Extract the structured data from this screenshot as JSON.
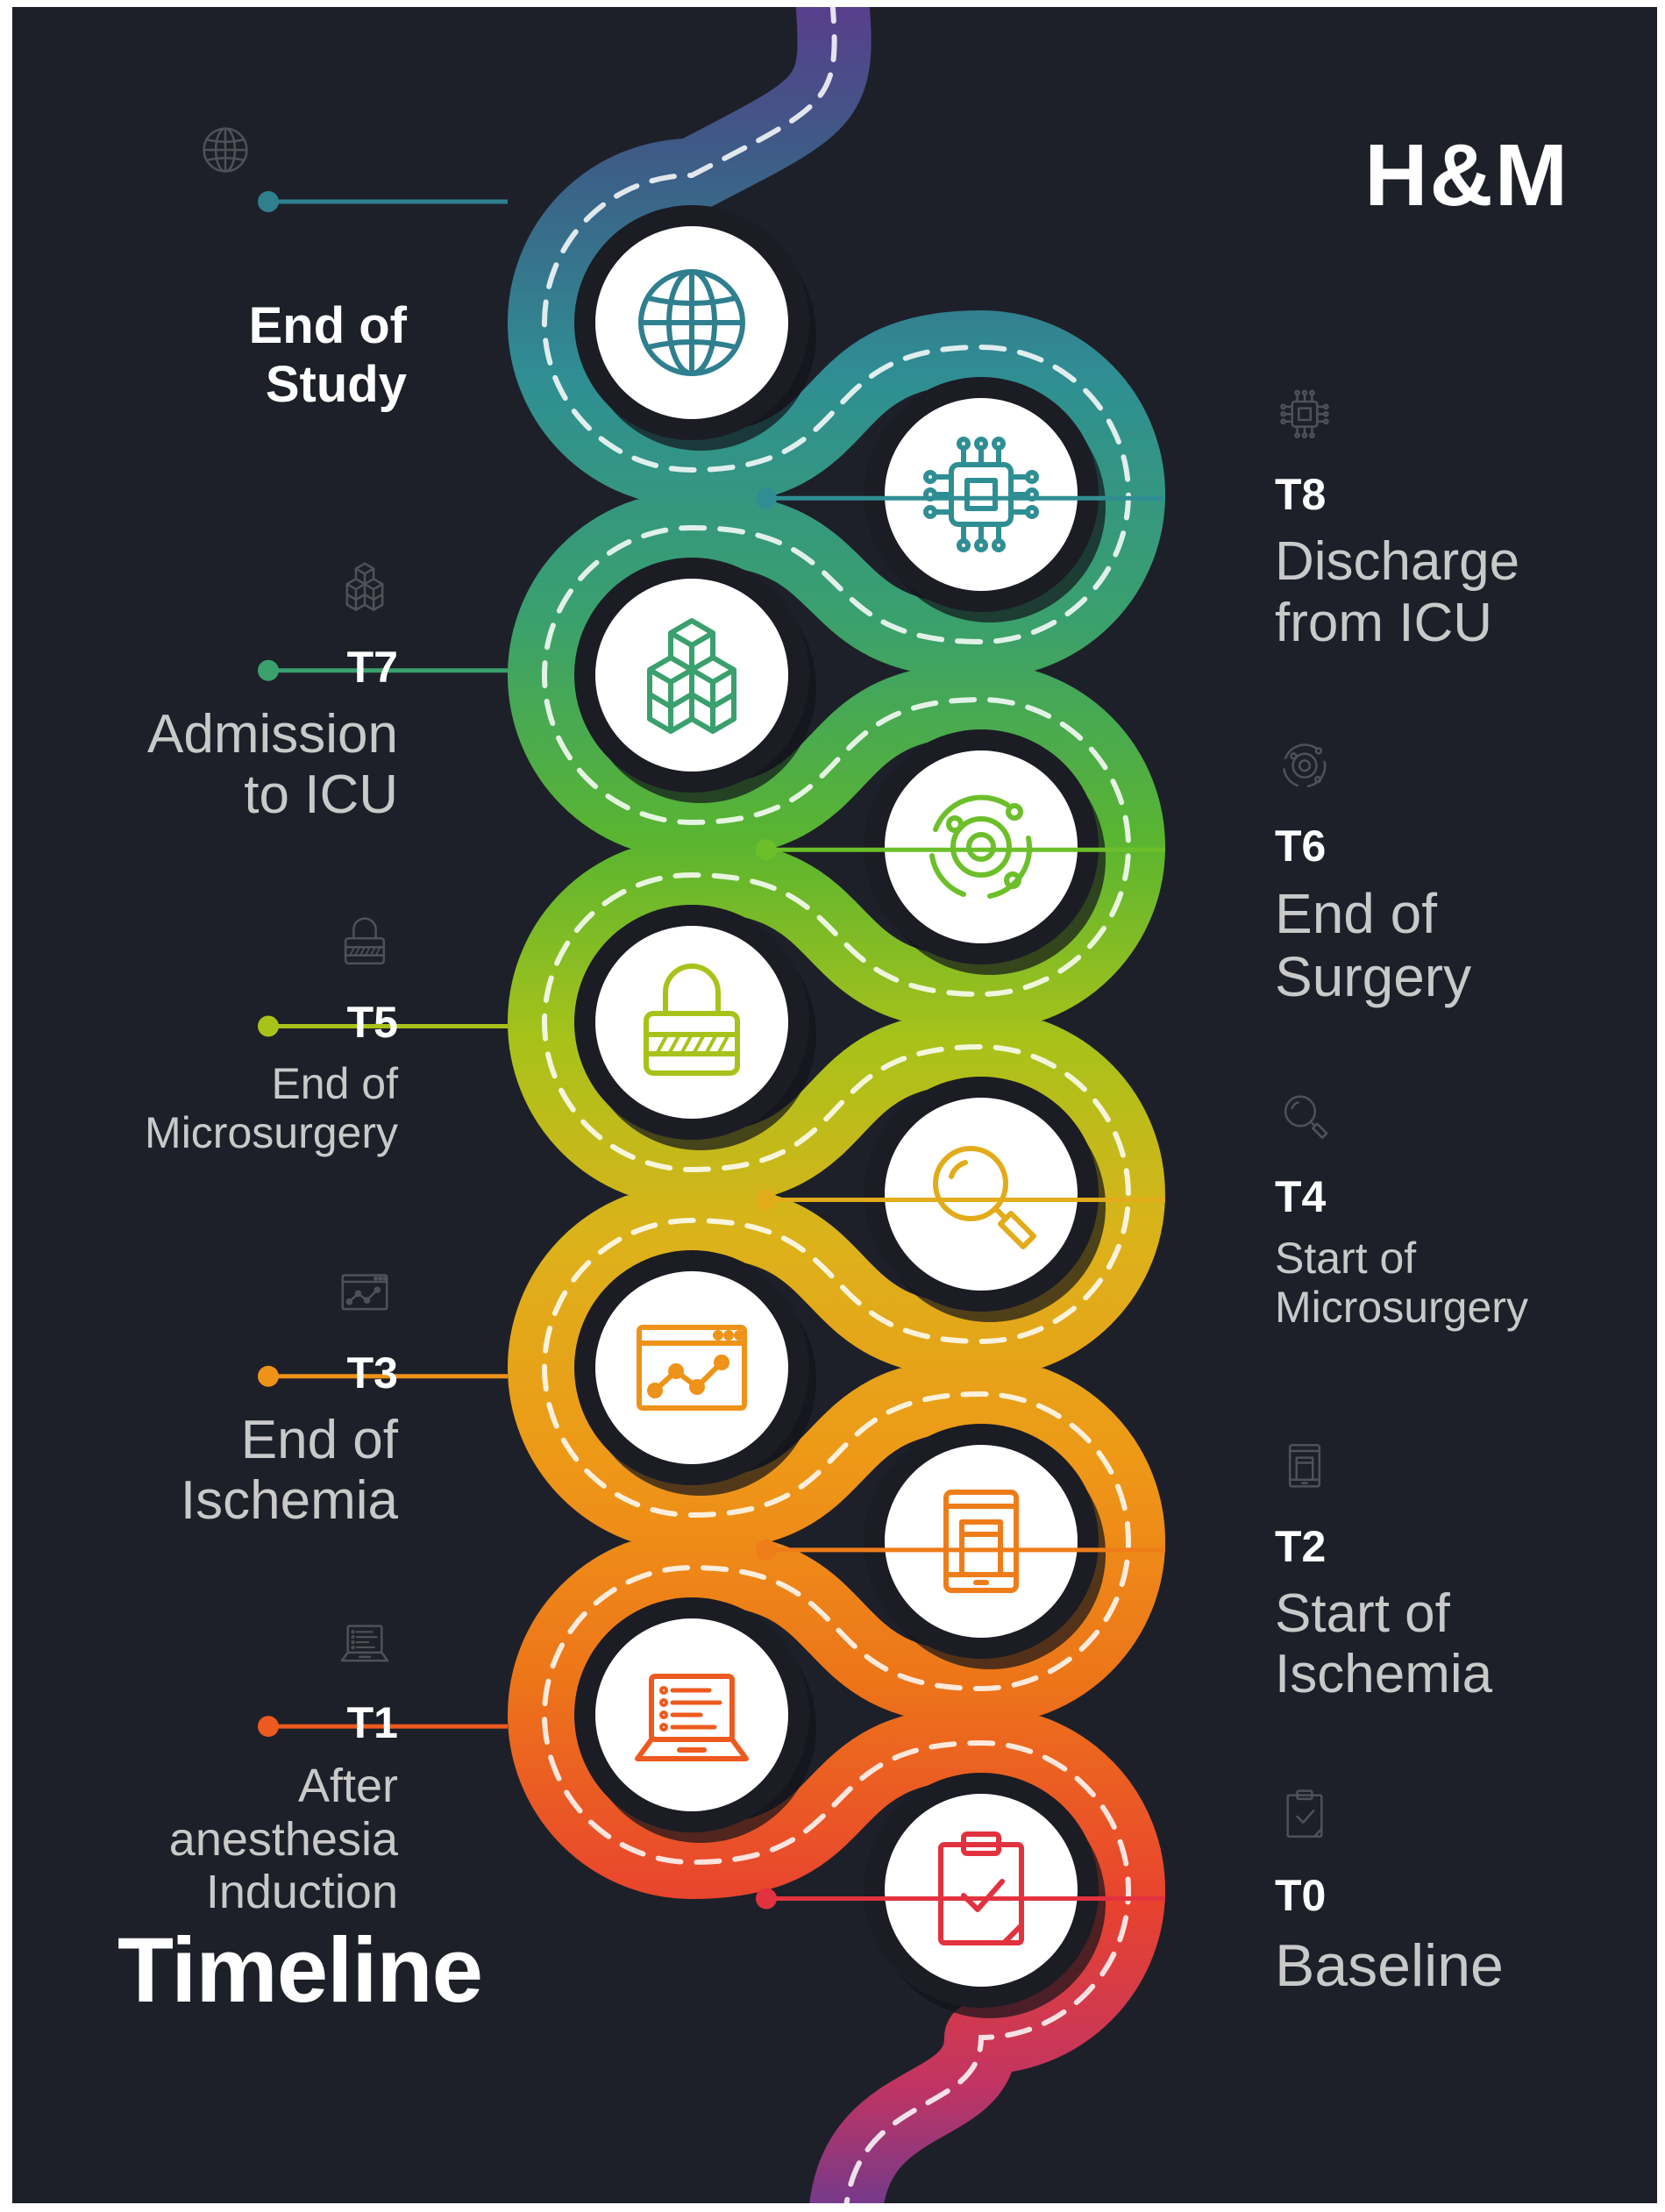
{
  "brand": "H&M",
  "title": "Timeline",
  "end_of_study": "End of\nStudy",
  "colors": {
    "background": "#1e2029",
    "track": [
      "#3d4f7c",
      "#2f8e93",
      "#3aa06d",
      "#4db23a",
      "#8fbd1c",
      "#c9b71a",
      "#e9a31a",
      "#ed7d19",
      "#ec5a1f",
      "#e2323f",
      "#8e3e8c"
    ]
  },
  "milestones": [
    {
      "code": "T8",
      "desc": "Discharge\nfrom ICU",
      "side": "right",
      "icon": "cpu-chip-icon",
      "color": "#2f8e93"
    },
    {
      "code": "T7",
      "desc": "Admission\nto ICU",
      "side": "left",
      "icon": "cubes-icon",
      "color": "#3aa06d"
    },
    {
      "code": "T6",
      "desc": "End of\nSurgery",
      "side": "right",
      "icon": "orbit-icon",
      "color": "#6cbf2a"
    },
    {
      "code": "T5",
      "desc": "End of\nMicrosurgery",
      "side": "left",
      "icon": "lock-icon",
      "color": "#a8c21a"
    },
    {
      "code": "T4",
      "desc": "Start of\nMicrosurgery",
      "side": "right",
      "icon": "magnifier-icon",
      "color": "#e2ab1a"
    },
    {
      "code": "T3",
      "desc": "End of\nIschemia",
      "side": "left",
      "icon": "chart-window-icon",
      "color": "#ee9218"
    },
    {
      "code": "T2",
      "desc": "Start of\nIschemia",
      "side": "right",
      "icon": "tablet-icon",
      "color": "#ee7d19"
    },
    {
      "code": "T1",
      "desc": "After\nanesthesia\nInduction",
      "side": "left",
      "icon": "laptop-icon",
      "color": "#ec5a1f"
    },
    {
      "code": "T0",
      "desc": "Baseline",
      "side": "right",
      "icon": "clipboard-icon",
      "color": "#e2323f"
    }
  ],
  "end_icon": {
    "name": "globe-icon",
    "color": "#2f7f8f"
  }
}
